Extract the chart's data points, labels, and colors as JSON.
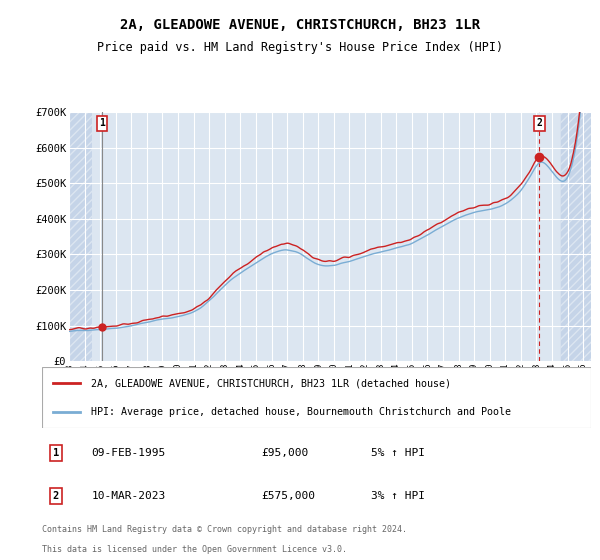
{
  "title": "2A, GLEADOWE AVENUE, CHRISTCHURCH, BH23 1LR",
  "subtitle": "Price paid vs. HM Land Registry's House Price Index (HPI)",
  "background_color": "#ffffff",
  "plot_bg_color": "#dce6f1",
  "hatch_color": "#c5d4e8",
  "grid_color": "#ffffff",
  "red_line_color": "#cc2222",
  "blue_line_color": "#7aadd4",
  "ylim": [
    0,
    700000
  ],
  "yticks": [
    0,
    100000,
    200000,
    300000,
    400000,
    500000,
    600000,
    700000
  ],
  "ytick_labels": [
    "£0",
    "£100K",
    "£200K",
    "£300K",
    "£400K",
    "£500K",
    "£600K",
    "£700K"
  ],
  "xlim_start": 1993.0,
  "xlim_end": 2026.5,
  "xtick_years": [
    1993,
    1994,
    1995,
    1996,
    1997,
    1998,
    1999,
    2000,
    2001,
    2002,
    2003,
    2004,
    2005,
    2006,
    2007,
    2008,
    2009,
    2010,
    2011,
    2012,
    2013,
    2014,
    2015,
    2016,
    2017,
    2018,
    2019,
    2020,
    2021,
    2022,
    2023,
    2024,
    2025,
    2026
  ],
  "legend_label_red": "2A, GLEADOWE AVENUE, CHRISTCHURCH, BH23 1LR (detached house)",
  "legend_label_blue": "HPI: Average price, detached house, Bournemouth Christchurch and Poole",
  "sale1_x": 1995.11,
  "sale1_y": 95000,
  "sale1_label": "1",
  "sale2_x": 2023.19,
  "sale2_y": 575000,
  "sale2_label": "2",
  "copyright_line1": "Contains HM Land Registry data © Crown copyright and database right 2024.",
  "copyright_line2": "This data is licensed under the Open Government Licence v3.0.",
  "hpi_key_times": [
    1993.0,
    1994.0,
    1995.5,
    1997.0,
    1999.0,
    2001.5,
    2003.5,
    2004.5,
    2007.5,
    2009.0,
    2009.75,
    2012.0,
    2013.5,
    2015.0,
    2016.5,
    2018.0,
    2019.5,
    2020.5,
    2021.5,
    2022.5,
    2023.25,
    2024.0,
    2025.0
  ],
  "hpi_key_vals": [
    83000,
    87000,
    91000,
    100000,
    118000,
    152000,
    232000,
    262000,
    308000,
    272000,
    268000,
    295000,
    312000,
    332000,
    367000,
    402000,
    422000,
    432000,
    458000,
    512000,
    558000,
    532000,
    518000
  ]
}
